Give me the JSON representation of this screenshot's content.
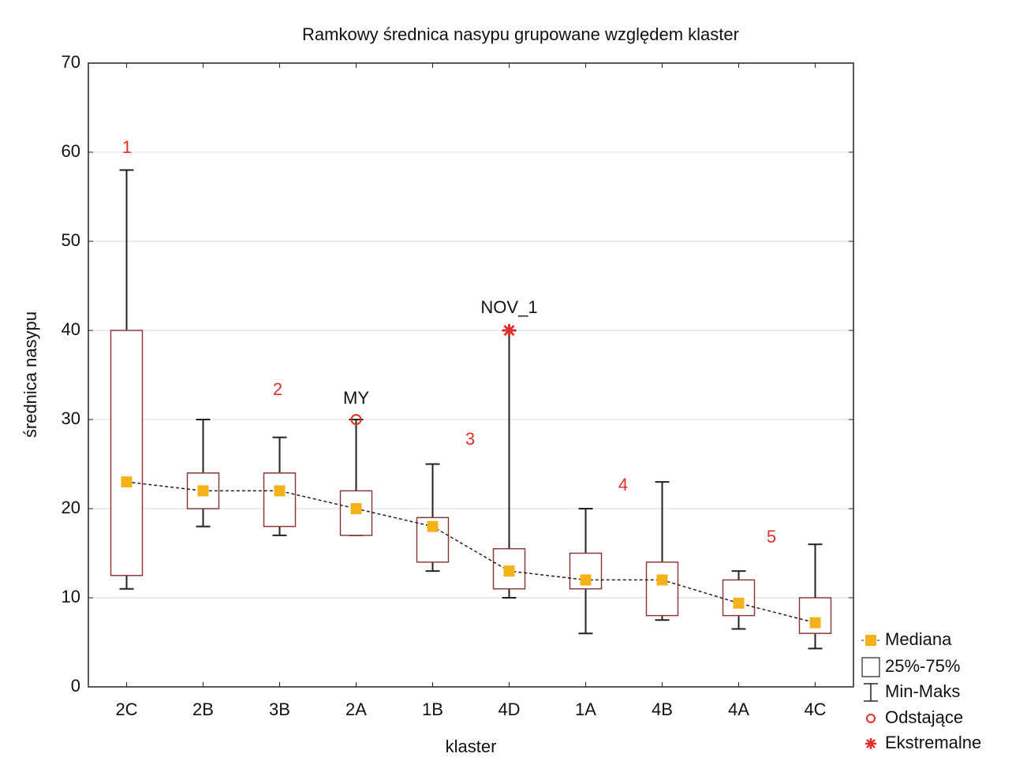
{
  "chart_data": {
    "type": "box",
    "title": "Ramkowy   średnica nasypu grupowane względem klaster",
    "x_label": "klaster",
    "y_label": "średnica nasypu",
    "categories": [
      "2C",
      "2B",
      "3B",
      "2A",
      "1B",
      "4D",
      "1A",
      "4B",
      "4A",
      "4C"
    ],
    "median": [
      23,
      22,
      22,
      20,
      18,
      13,
      12,
      12,
      9.4,
      7.2
    ],
    "q1": [
      12.5,
      20,
      18,
      17,
      14,
      11,
      11,
      8,
      8,
      6
    ],
    "q3": [
      40,
      24,
      24,
      22,
      19,
      15.5,
      15,
      14,
      12,
      10
    ],
    "min": [
      11,
      18,
      17,
      17,
      13,
      10,
      6,
      7.5,
      6.5,
      4.3
    ],
    "max": [
      58,
      30,
      28,
      30,
      25,
      40,
      20,
      23,
      13,
      16
    ],
    "outliers": [
      {
        "category": "2A",
        "value": 30,
        "label": "MY"
      }
    ],
    "extremes": [
      {
        "category": "4D",
        "value": 40,
        "label": "NOV_1"
      }
    ],
    "annotations": [
      "1",
      "2",
      "3",
      "4",
      "5"
    ],
    "ylim": [
      0,
      70
    ],
    "yticks": [
      0,
      10,
      20,
      30,
      40,
      50,
      60,
      70
    ],
    "grid": true,
    "legend": [
      "Mediana",
      "25%-75%",
      "Min-Maks",
      "Odstające",
      "Ekstremalne"
    ],
    "legend_position": "lower right outside",
    "colors": {
      "median": "#f5b11a",
      "box": "#8b3a3a",
      "whisker": "#222222",
      "outlier": "#e0302a",
      "annotation": "#e0302a"
    }
  }
}
